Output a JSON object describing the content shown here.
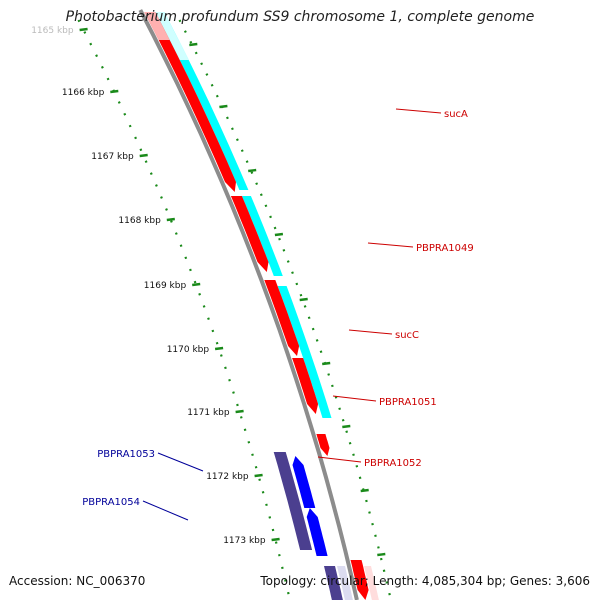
{
  "title": "Photobacterium profundum SS9 chromosome 1, complete genome",
  "footer": {
    "accession": "Accession: NC_006370",
    "topology": "Topology: circular; Length: 4,085,304 bp; Genes: 3,606"
  },
  "colors": {
    "forward_cds": "#ff0000",
    "forward_gene": "#00ffff",
    "reverse_cds": "#0000ff",
    "reverse_gene": "#4b3f8f",
    "backbone": "#8c8c8c",
    "tick_marks": "#1a8a1a",
    "forward_label": "#cc0000",
    "reverse_label": "#000099"
  },
  "ruler": {
    "labels": [
      "1165 kbp",
      "1166 kbp",
      "1167 kbp",
      "1168 kbp",
      "1169 kbp",
      "1170 kbp",
      "1171 kbp",
      "1172 kbp",
      "1173 kbp"
    ]
  },
  "genes": [
    {
      "name": "sucA",
      "strand": "forward"
    },
    {
      "name": "PBPRA1049",
      "strand": "forward"
    },
    {
      "name": "sucC",
      "strand": "forward"
    },
    {
      "name": "PBPRA1051",
      "strand": "forward"
    },
    {
      "name": "PBPRA1052",
      "strand": "forward"
    },
    {
      "name": "PBPRA1053",
      "strand": "reverse"
    },
    {
      "name": "PBPRA1054",
      "strand": "reverse"
    }
  ]
}
